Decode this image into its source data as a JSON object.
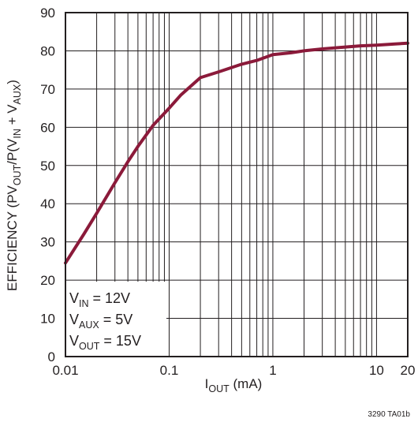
{
  "chart_data": {
    "type": "line",
    "xscale": "log",
    "xlim": [
      0.01,
      20
    ],
    "ylim": [
      0,
      90
    ],
    "grid": true,
    "x_ticks": [
      {
        "value": 0.01,
        "label": "0.01"
      },
      {
        "value": 0.1,
        "label": "0.1"
      },
      {
        "value": 1,
        "label": "1"
      },
      {
        "value": 10,
        "label": "10"
      },
      {
        "value": 20,
        "label": "20"
      }
    ],
    "y_ticks": [
      "0",
      "10",
      "20",
      "30",
      "40",
      "50",
      "60",
      "70",
      "80",
      "90"
    ],
    "xlabel": {
      "main": "I",
      "sub": "OUT",
      "unit": " (mA)"
    },
    "ylabel": {
      "p1": "EFFICIENCY (PV",
      "s1": "OUT",
      "p2": "/P(V",
      "s2": "IN",
      "p3": " + V",
      "s3": "AUX",
      "p4": ")"
    },
    "annotation": [
      {
        "main": "V",
        "sub": "IN",
        "rest": " = 12V"
      },
      {
        "main": "V",
        "sub": "AUX",
        "rest": " = 5V"
      },
      {
        "main": "V",
        "sub": "OUT",
        "rest": " = 15V"
      }
    ],
    "series": [
      {
        "color": "#8b1a3a",
        "x": [
          0.01,
          0.015,
          0.02,
          0.03,
          0.04,
          0.05,
          0.07,
          0.1,
          0.13,
          0.2,
          0.3,
          0.5,
          0.7,
          1,
          1.5,
          2,
          3,
          5,
          7,
          10,
          15,
          20
        ],
        "y": [
          24.5,
          32,
          37.5,
          45.5,
          51,
          55,
          60.5,
          65,
          68.5,
          73,
          74.5,
          76.5,
          77.5,
          79,
          79.5,
          80,
          80.5,
          81,
          81.3,
          81.5,
          81.8,
          82
        ]
      }
    ]
  },
  "figure_id": "3290 TA01b"
}
